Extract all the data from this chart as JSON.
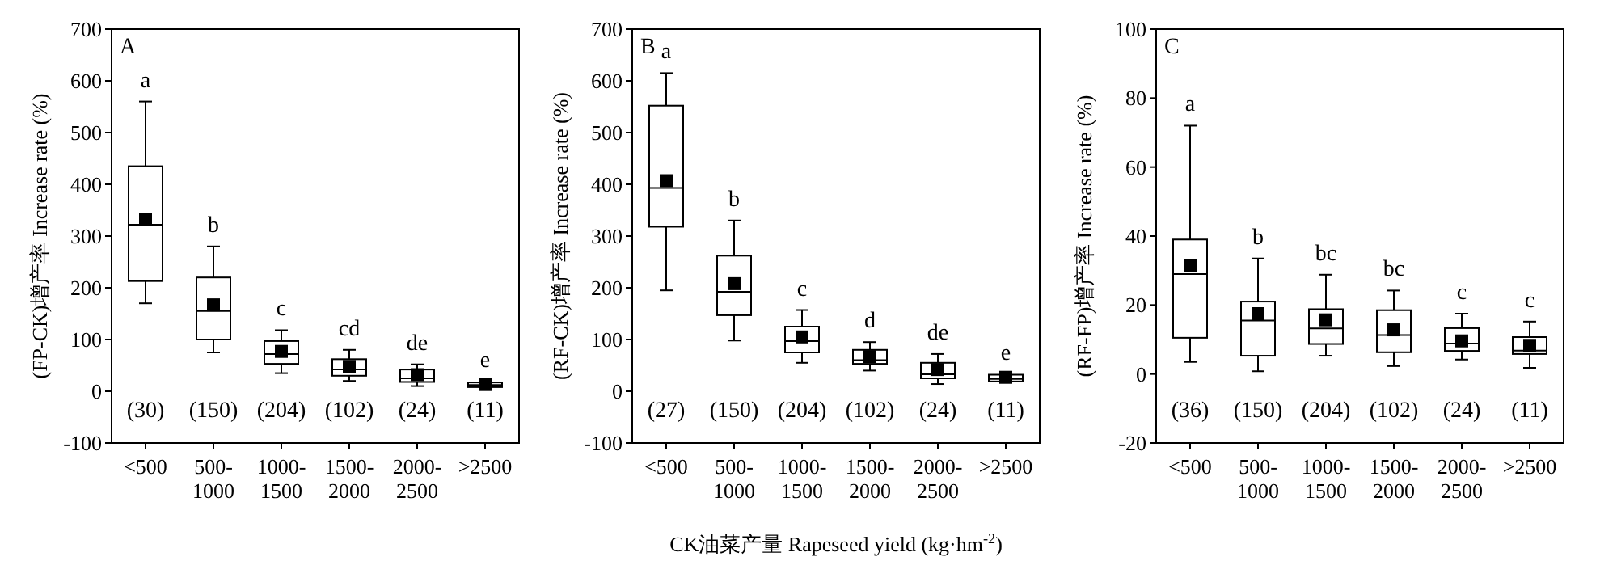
{
  "chart_data": [
    {
      "type": "box",
      "title": "A",
      "ylabel": "(FP-CK)增产率 Increase rate (%)",
      "categories": [
        "<500",
        "500-1000",
        "1000-1500",
        "1500-2000",
        "2000-2500",
        ">2500"
      ],
      "ylim": [
        -100,
        700
      ],
      "yticks": [
        -100,
        0,
        100,
        200,
        300,
        400,
        500,
        600,
        700
      ],
      "grid": false,
      "marker": "square",
      "boxes": [
        {
          "low": 170,
          "q1": 213,
          "median": 322,
          "q3": 435,
          "high": 560,
          "mean": 332
        },
        {
          "low": 75,
          "q1": 100,
          "median": 155,
          "q3": 220,
          "high": 280,
          "mean": 167
        },
        {
          "low": 35,
          "q1": 53,
          "median": 72,
          "q3": 97,
          "high": 118,
          "mean": 77
        },
        {
          "low": 20,
          "q1": 30,
          "median": 42,
          "q3": 62,
          "high": 80,
          "mean": 48
        },
        {
          "low": 10,
          "q1": 18,
          "median": 25,
          "q3": 42,
          "high": 52,
          "mean": 32
        },
        {
          "low": 7,
          "q1": 8,
          "median": 12,
          "q3": 17,
          "high": 18,
          "mean": 13
        }
      ],
      "annotations": [
        "a",
        "b",
        "c",
        "cd",
        "de",
        "e",
        "(30)",
        "(150)",
        "(204)",
        "(102)",
        "(24)",
        "(11)"
      ]
    },
    {
      "type": "box",
      "title": "B",
      "ylabel": "(RF-CK)增产率 Increase rate (%)",
      "xlabel": "CK油菜产量 Rapeseed yield (kg·hm$^{-2}$)",
      "categories": [
        "<500",
        "500-1000",
        "1000-1500",
        "1500-2000",
        "2000-2500",
        ">2500"
      ],
      "ylim": [
        -100,
        700
      ],
      "yticks": [
        -100,
        0,
        100,
        200,
        300,
        400,
        500,
        600,
        700
      ],
      "grid": false,
      "marker": "square",
      "boxes": [
        {
          "low": 195,
          "q1": 318,
          "median": 393,
          "q3": 552,
          "high": 615,
          "mean": 407
        },
        {
          "low": 98,
          "q1": 147,
          "median": 192,
          "q3": 262,
          "high": 330,
          "mean": 208
        },
        {
          "low": 55,
          "q1": 75,
          "median": 97,
          "q3": 125,
          "high": 157,
          "mean": 105
        },
        {
          "low": 40,
          "q1": 53,
          "median": 60,
          "q3": 80,
          "high": 95,
          "mean": 67
        },
        {
          "low": 14,
          "q1": 25,
          "median": 33,
          "q3": 55,
          "high": 72,
          "mean": 42
        },
        {
          "low": 18,
          "q1": 19,
          "median": 24,
          "q3": 32,
          "high": 33,
          "mean": 27
        }
      ],
      "annotations": [
        "a",
        "b",
        "c",
        "d",
        "de",
        "e",
        "(27)",
        "(150)",
        "(204)",
        "(102)",
        "(24)",
        "(11)"
      ]
    },
    {
      "type": "box",
      "title": "C",
      "ylabel": "(RF-FP)增产率 Increase rate (%)",
      "categories": [
        "<500",
        "500-1000",
        "1000-1500",
        "1500-2000",
        "2000-2500",
        ">2500"
      ],
      "ylim": [
        -20,
        100
      ],
      "yticks": [
        -20,
        0,
        20,
        40,
        60,
        80,
        100
      ],
      "grid": false,
      "marker": "square",
      "boxes": [
        {
          "low": 3.5,
          "q1": 10.5,
          "median": 29,
          "q3": 39,
          "high": 72,
          "mean": 31.5
        },
        {
          "low": 0.8,
          "q1": 5.3,
          "median": 15.5,
          "q3": 21,
          "high": 33.5,
          "mean": 17.5
        },
        {
          "low": 5.3,
          "q1": 8.7,
          "median": 13.2,
          "q3": 18.8,
          "high": 28.8,
          "mean": 15.7
        },
        {
          "low": 2.3,
          "q1": 6.3,
          "median": 11.3,
          "q3": 18.5,
          "high": 24.2,
          "mean": 12.8
        },
        {
          "low": 4.2,
          "q1": 6.7,
          "median": 8.8,
          "q3": 13.3,
          "high": 17.5,
          "mean": 9.6
        },
        {
          "low": 1.8,
          "q1": 5.8,
          "median": 6.8,
          "q3": 10.7,
          "high": 15.2,
          "mean": 8.3
        }
      ],
      "annotations": [
        "a",
        "b",
        "bc",
        "bc",
        "c",
        "c",
        "(36)",
        "(150)",
        "(204)",
        "(102)",
        "(24)",
        "(11)"
      ]
    }
  ]
}
